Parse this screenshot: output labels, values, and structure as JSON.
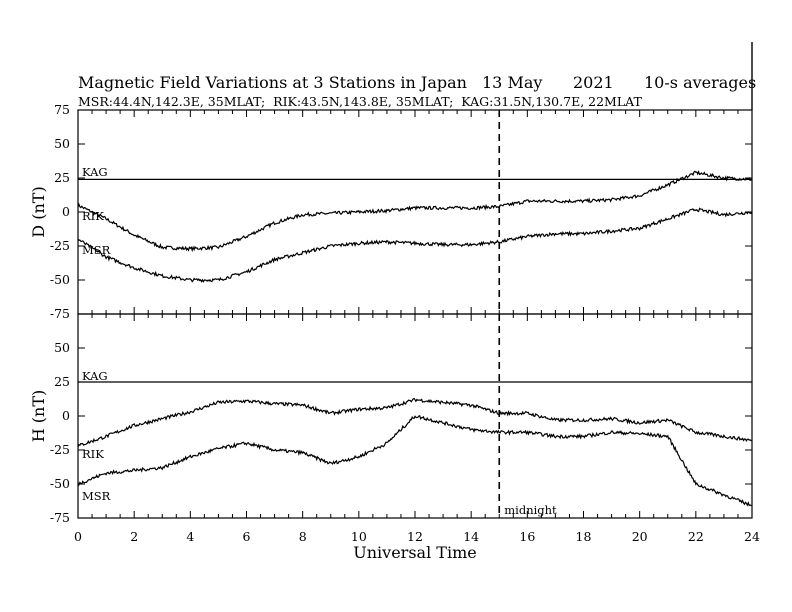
{
  "chart_data": {
    "type": "line",
    "title": "Magnetic Field Variations at 3 Stations in Japan",
    "date": "13 May",
    "year": "2021",
    "averaging": "10-s averages",
    "stations_info": "MSR:44.4N,142.3E, 35MLAT;  RIK:43.5N,143.8E, 35MLAT;  KAG:31.5N,130.7E, 22MLAT",
    "xlabel": "Universal Time",
    "xlim": [
      0,
      24
    ],
    "x_ticks": [
      0,
      2,
      4,
      6,
      8,
      10,
      12,
      14,
      16,
      18,
      20,
      22,
      24
    ],
    "midnight": {
      "x": 15,
      "label": "midnight"
    },
    "panels": [
      {
        "ylabel": "D (nT)",
        "ylim": [
          -75,
          75
        ],
        "y_ticks": [
          75,
          50,
          25,
          0,
          -25,
          -50,
          -75
        ],
        "series": [
          {
            "name": "KAG",
            "x": [
              0,
              24
            ],
            "values": [
              24,
              24
            ]
          },
          {
            "name": "RIK",
            "x": [
              0,
              1,
              2,
              3,
              4,
              5,
              6,
              7,
              8,
              9,
              10,
              11,
              12,
              13,
              14,
              15,
              16,
              17,
              18,
              19,
              20,
              21,
              22,
              23,
              24
            ],
            "values": [
              5,
              -5,
              -17,
              -26,
              -27,
              -26,
              -18,
              -8,
              -2,
              -1,
              0,
              1,
              3,
              3,
              3,
              4,
              8,
              8,
              8,
              9,
              12,
              20,
              29,
              25,
              24
            ]
          },
          {
            "name": "MSR",
            "x": [
              0,
              1,
              2,
              3,
              4,
              5,
              6,
              7,
              8,
              9,
              10,
              11,
              12,
              13,
              14,
              15,
              16,
              17,
              18,
              19,
              20,
              21,
              22,
              23,
              24
            ],
            "values": [
              -20,
              -33,
              -41,
              -47,
              -50,
              -50,
              -44,
              -35,
              -30,
              -25,
              -23,
              -22,
              -23,
              -24,
              -24,
              -22,
              -18,
              -16,
              -16,
              -14,
              -12,
              -5,
              2,
              -2,
              0
            ]
          }
        ]
      },
      {
        "ylabel": "H (nT)",
        "ylim": [
          -75,
          75
        ],
        "y_ticks": [
          75,
          50,
          25,
          0,
          -25,
          -50,
          -75
        ],
        "series": [
          {
            "name": "KAG",
            "x": [
              0,
              24
            ],
            "values": [
              25,
              25
            ]
          },
          {
            "name": "RIK",
            "x": [
              0,
              1,
              2,
              3,
              4,
              5,
              6,
              7,
              8,
              9,
              10,
              11,
              12,
              13,
              14,
              15,
              16,
              17,
              18,
              19,
              20,
              21,
              22,
              23,
              24
            ],
            "values": [
              -22,
              -15,
              -7,
              -2,
              3,
              10,
              11,
              9,
              8,
              2,
              5,
              6,
              12,
              10,
              8,
              2,
              2,
              -3,
              -3,
              -2,
              -5,
              -3,
              -12,
              -15,
              -18
            ]
          },
          {
            "name": "MSR",
            "x": [
              0,
              1,
              2,
              3,
              4,
              5,
              6,
              7,
              8,
              9,
              10,
              11,
              12,
              13,
              14,
              15,
              16,
              17,
              18,
              19,
              20,
              21,
              22,
              23,
              24
            ],
            "values": [
              -50,
              -42,
              -40,
              -38,
              -30,
              -24,
              -20,
              -25,
              -27,
              -35,
              -30,
              -20,
              0,
              -5,
              -10,
              -12,
              -12,
              -15,
              -15,
              -12,
              -13,
              -15,
              -50,
              -58,
              -66
            ]
          }
        ]
      }
    ]
  }
}
